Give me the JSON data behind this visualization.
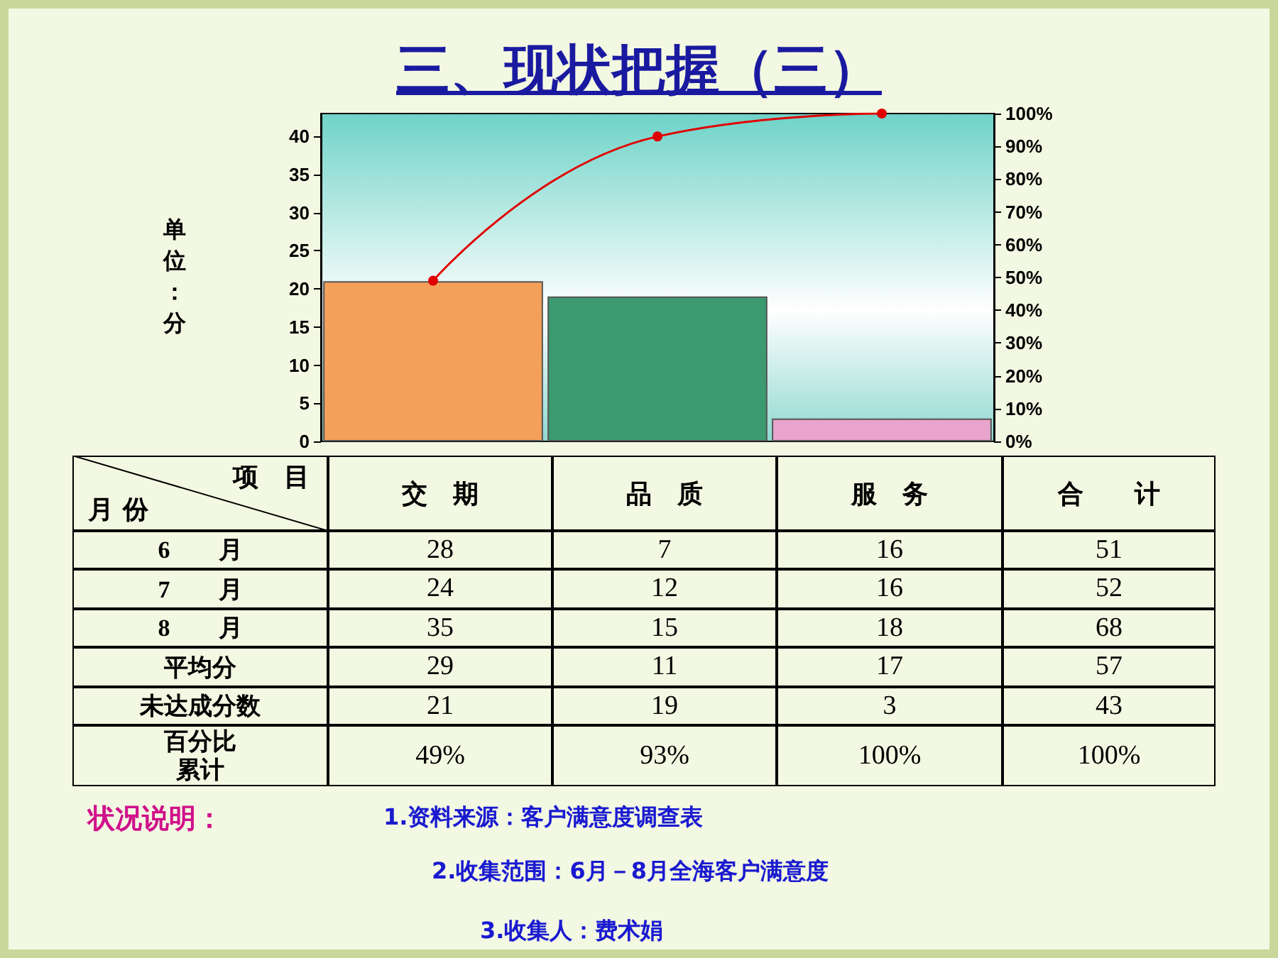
{
  "chart_data": {
    "type": "bar",
    "title": "三、现状把握（三）",
    "ylabel": "单位：分",
    "categories": [
      "交　期",
      "品　质",
      "服　务"
    ],
    "series": [
      {
        "colors": [
          "#f5a05a",
          "#3c9a70",
          "#e8a4cc"
        ],
        "values": [
          21,
          19,
          3
        ],
        "value_labels": [
          "21",
          "19",
          "3"
        ]
      },
      {
        "type": "line",
        "axis": "y2",
        "color": "#e00000",
        "values": [
          49,
          93,
          100
        ],
        "value_labels": [
          "49%",
          "93%",
          "100%"
        ]
      }
    ],
    "ylim": [
      0,
      43
    ],
    "yticks": [
      0,
      5,
      10,
      15,
      20,
      25,
      30,
      35,
      40
    ],
    "y2lim": [
      0,
      100
    ],
    "y2ticks": [
      {
        "value": 0,
        "label": "0%"
      },
      {
        "value": 10,
        "label": "10%"
      },
      {
        "value": 20,
        "label": "20%"
      },
      {
        "value": 30,
        "label": "30%"
      },
      {
        "value": 40,
        "label": "40%"
      },
      {
        "value": 50,
        "label": "50%"
      },
      {
        "value": 60,
        "label": "60%"
      },
      {
        "value": 70,
        "label": "70%"
      },
      {
        "value": 80,
        "label": "80%"
      },
      {
        "value": 90,
        "label": "90%"
      },
      {
        "value": 100,
        "label": "100%"
      }
    ],
    "grid": false,
    "marker": "circle",
    "line_style": "solid",
    "annotations": [
      "项　目",
      "月 份",
      "合　　计",
      "6　　月",
      "28",
      "7",
      "16",
      "51",
      "7　　月",
      "24",
      "12",
      "16",
      "52",
      "8　　月",
      "35",
      "15",
      "18",
      "68",
      "平均分",
      "29",
      "11",
      "17",
      "57",
      "未达成分数",
      "43",
      "百分比累计",
      "100%",
      "状况说明：",
      "1.资料来源：客户满意度调查表",
      "2.收集范围：6月－8月全海客户满意度",
      "3.收集人：费术娟"
    ]
  }
}
